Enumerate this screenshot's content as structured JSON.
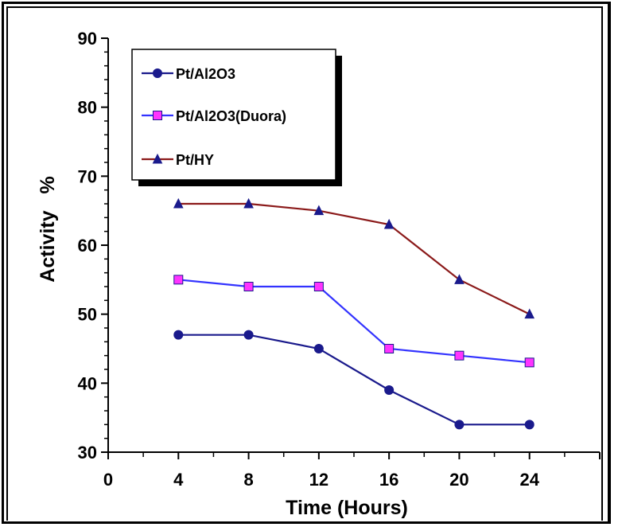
{
  "chart_data": {
    "type": "line",
    "xlabel": "Time (Hours)",
    "ylabel": "Activity   %",
    "xlim": [
      0,
      28
    ],
    "ylim": [
      30,
      90
    ],
    "x_ticks": [
      "0",
      "4",
      "8",
      "12",
      "16",
      "20",
      "24"
    ],
    "y_ticks": [
      "30",
      "40",
      "50",
      "60",
      "70",
      "80",
      "90"
    ],
    "x": [
      4,
      8,
      12,
      16,
      20,
      24
    ],
    "grid": false,
    "legend_position": "top-left",
    "series": [
      {
        "name": "Pt/Al2O3",
        "values": [
          47,
          47,
          45,
          39,
          34,
          34
        ],
        "color": "#1a1a8c",
        "marker": "circle",
        "marker_color": "#1a1a8c"
      },
      {
        "name": "Pt/Al2O3(Duora)",
        "values": [
          55,
          54,
          54,
          45,
          44,
          43
        ],
        "color": "#3333ff",
        "marker": "square",
        "marker_color": "#ff33ff"
      },
      {
        "name": "Pt/HY",
        "values": [
          66,
          66,
          65,
          63,
          55,
          50
        ],
        "color": "#8b1a1a",
        "marker": "triangle",
        "marker_color": "#1a1a8c"
      }
    ]
  }
}
